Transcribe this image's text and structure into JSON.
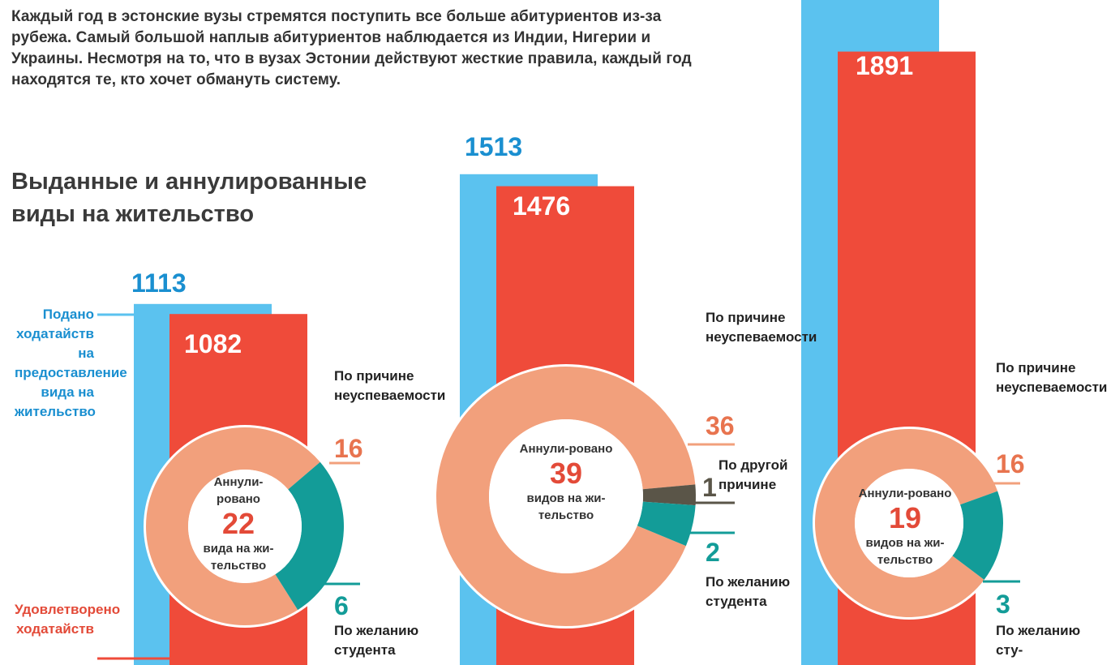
{
  "intro_text": "Каждый год в эстонские вузы стремятся поступить все больше абитуриентов из-за рубежа. Самый большой наплыв абитуриентов наблюдается из Индии, Нигерии и Украины. Несмотря на то, что в вузах Эстонии действуют жесткие правила, каждый год находятся те, кто хочет обмануть систему.",
  "subtitle": "Выданные и аннулированные виды на жительство",
  "legend": {
    "applied": "Подано ходатайств на предоставление вида на жительство",
    "approved": "Удовлетворено ходатайств"
  },
  "colors": {
    "applied": "#5bc2ef",
    "approved": "#ef4b3a",
    "donut_main": "#f2a07c",
    "donut_student": "#139c98",
    "donut_other": "#5a5548",
    "count_blue": "#1a8fd0",
    "count_orange": "#e8744f"
  },
  "chart_data": {
    "type": "bar",
    "series": [
      {
        "name": "Подано ходатайств на предоставление вида на жительство",
        "values": [
          1113,
          1513,
          null
        ]
      },
      {
        "name": "Удовлетворено ходатайств",
        "values": [
          1082,
          1476,
          1891
        ]
      }
    ],
    "annulled": [
      {
        "total": 22,
        "center_top": "Аннули-ровано",
        "center_bottom": "вида на жи-тельство",
        "segments": [
          {
            "label": "По причине неуспеваемости",
            "value": 16
          },
          {
            "label": "По желанию студента",
            "value": 6
          }
        ]
      },
      {
        "total": 39,
        "center_top": "Аннули-ровано",
        "center_bottom": "видов на жи-тельство",
        "segments": [
          {
            "label": "По причине неуспеваемости",
            "value": 36
          },
          {
            "label": "По другой причине",
            "value": 1
          },
          {
            "label": "По желанию студента",
            "value": 2
          }
        ]
      },
      {
        "total": 19,
        "center_top": "Аннули-ровано",
        "center_bottom": "видов на жи-тельство",
        "segments": [
          {
            "label": "По причине неуспеваемости",
            "value": 16
          },
          {
            "label": "По желанию студента",
            "value": 3
          }
        ]
      }
    ]
  },
  "labels": {
    "g1_bar_blue": "1113",
    "g1_bar_red": "1082",
    "g2_bar_blue": "1513",
    "g2_bar_red": "1476",
    "g3_bar_red": "1891",
    "g1_reason_fail": "По причине неуспеваемости",
    "g1_reason_fail_value": "16",
    "g1_reason_student": "По желанию студента",
    "g1_reason_student_value": "6",
    "g2_reason_fail": "По причине неуспеваемости",
    "g2_reason_fail_value": "36",
    "g2_reason_other": "По другой причине",
    "g2_reason_other_value": "1",
    "g2_reason_student": "По желанию студента",
    "g2_reason_student_value": "2",
    "g3_reason_fail": "По причине неуспеваемости",
    "g3_reason_fail_value": "16",
    "g3_reason_student": "По желанию сту-",
    "g3_reason_student_value": "3",
    "g1_center_top": "Аннули-рованo",
    "g1_total": "22",
    "g1_center_bottom": "вида на жи-тельство",
    "g2_center_top": "Аннули-ровано",
    "g2_total": "39",
    "g2_center_bottom": "видов на жи-тельство",
    "g3_center_top": "Аннули-ровано",
    "g3_total": "19",
    "g3_center_bottom": "видов на жи-тельство"
  }
}
